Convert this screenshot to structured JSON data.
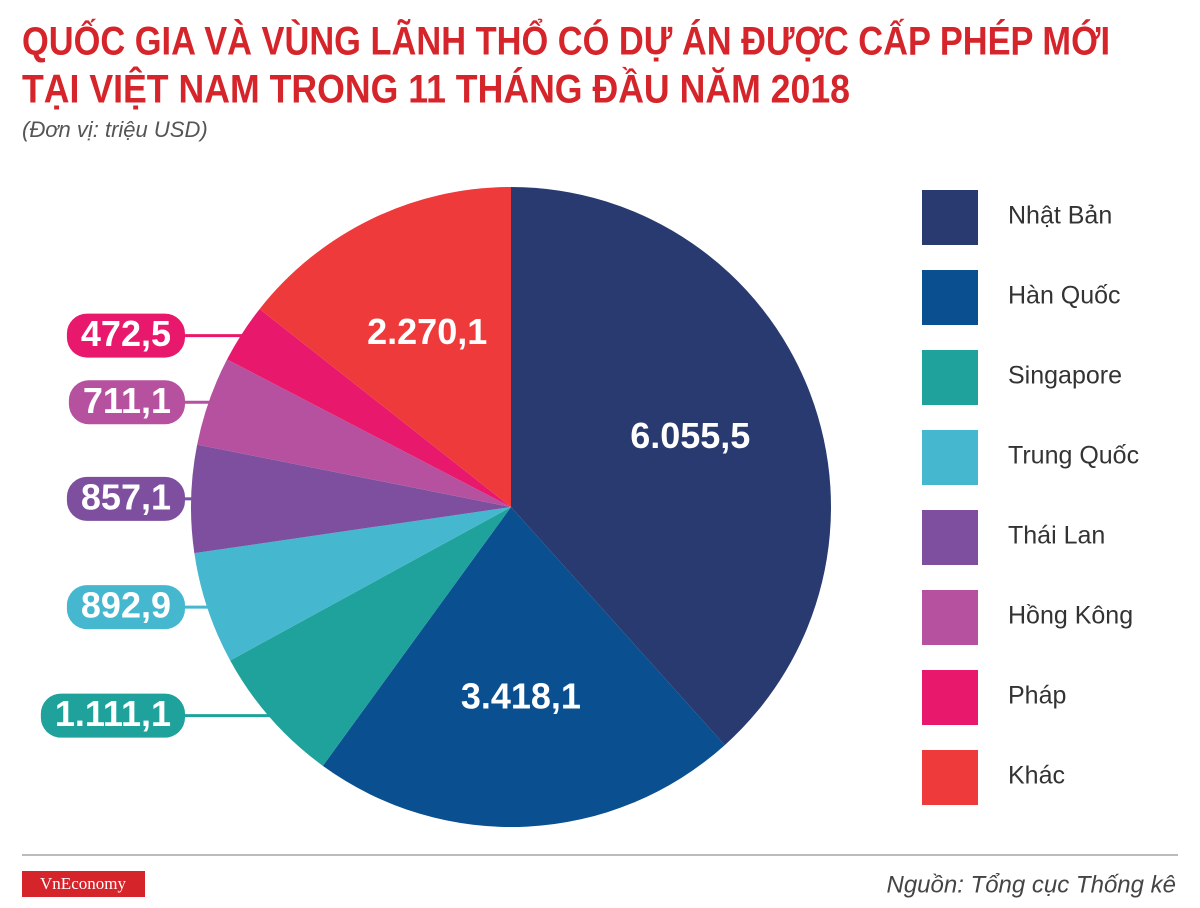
{
  "chart_data": {
    "type": "pie",
    "title": [
      "QUỐC GIA VÀ VÙNG LÃNH THỔ CÓ DỰ ÁN ĐƯỢC CẤP PHÉP MỚI",
      "TẠI VIỆT NAM TRONG 11 THÁNG ĐẦU NĂM 2018"
    ],
    "subtitle": "(Đơn vị: triệu USD)",
    "categories": [
      "Nhật Bản",
      "Hàn Quốc",
      "Singapore",
      "Trung Quốc",
      "Thái Lan",
      "Hồng Kông",
      "Pháp",
      "Khác"
    ],
    "values": [
      6055.5,
      3418.1,
      1111.1,
      892.9,
      857.1,
      711.1,
      472.5,
      2270.1
    ],
    "value_labels": [
      "6.055,5",
      "3.418,1",
      "1.111,1",
      "892,9",
      "857,1",
      "711,1",
      "472,5",
      "2.270,1"
    ],
    "colors": [
      "#283a6f",
      "#0a4f8f",
      "#1fa29b",
      "#45b8cf",
      "#7d4f9e",
      "#b5519f",
      "#e8196c",
      "#ee3a3a"
    ],
    "legend": "right"
  },
  "footer": {
    "brand": "VnEconomy",
    "source": "Nguồn: Tổng cục Thống kê"
  }
}
